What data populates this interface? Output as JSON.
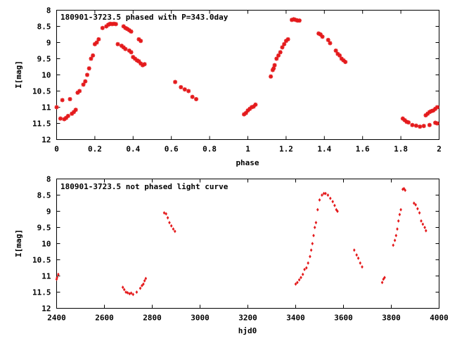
{
  "colors": {
    "point": "#e41a1c",
    "axis": "#000000",
    "background": "#ffffff"
  },
  "chart_data": [
    {
      "type": "scatter",
      "title": "180901-3723.5 phased with P=343.0day",
      "xlabel": "phase",
      "ylabel": "I[mag]",
      "xlim": [
        0,
        2
      ],
      "ylim": [
        8,
        12
      ],
      "y_inverted": true,
      "grid": false,
      "xticks": [
        0,
        0.2,
        0.4,
        0.6,
        0.8,
        1,
        1.2,
        1.4,
        1.6,
        1.8,
        2
      ],
      "xtick_labels": [
        "0",
        "0.2",
        "0.4",
        "0.6",
        "0.8",
        "1",
        "1.2",
        "1.4",
        "1.6",
        "1.8",
        "2"
      ],
      "yticks": [
        8,
        8.5,
        9,
        9.5,
        10,
        10.5,
        11,
        11.5,
        12
      ],
      "ytick_labels": [
        "8",
        "8.5",
        "9",
        "9.5",
        "10",
        "10.5",
        "11",
        "11.5",
        "12"
      ],
      "series": [
        {
          "marker": "star",
          "points": [
            [
              0.0,
              11.0
            ],
            [
              0.02,
              11.35
            ],
            [
              0.03,
              10.78
            ],
            [
              0.04,
              11.37
            ],
            [
              0.05,
              11.33
            ],
            [
              0.06,
              11.27
            ],
            [
              0.07,
              10.75
            ],
            [
              0.08,
              11.2
            ],
            [
              0.09,
              11.15
            ],
            [
              0.1,
              11.08
            ],
            [
              0.11,
              10.55
            ],
            [
              0.12,
              10.5
            ],
            [
              0.14,
              10.3
            ],
            [
              0.15,
              10.2
            ],
            [
              0.16,
              10.0
            ],
            [
              0.17,
              9.8
            ],
            [
              0.18,
              9.5
            ],
            [
              0.19,
              9.4
            ],
            [
              0.2,
              9.05
            ],
            [
              0.21,
              9.0
            ],
            [
              0.22,
              8.9
            ],
            [
              0.24,
              8.55
            ],
            [
              0.26,
              8.5
            ],
            [
              0.27,
              8.45
            ],
            [
              0.28,
              8.42
            ],
            [
              0.29,
              8.43
            ],
            [
              0.3,
              8.42
            ],
            [
              0.31,
              8.43
            ],
            [
              0.32,
              9.05
            ],
            [
              0.34,
              9.1
            ],
            [
              0.35,
              9.15
            ],
            [
              0.35,
              8.5
            ],
            [
              0.36,
              8.55
            ],
            [
              0.36,
              9.2
            ],
            [
              0.37,
              8.58
            ],
            [
              0.38,
              9.25
            ],
            [
              0.38,
              8.62
            ],
            [
              0.39,
              9.3
            ],
            [
              0.39,
              8.66
            ],
            [
              0.4,
              9.45
            ],
            [
              0.41,
              9.5
            ],
            [
              0.42,
              9.55
            ],
            [
              0.43,
              9.58
            ],
            [
              0.43,
              8.9
            ],
            [
              0.44,
              8.95
            ],
            [
              0.44,
              9.65
            ],
            [
              0.45,
              9.7
            ],
            [
              0.46,
              9.67
            ],
            [
              0.62,
              10.22
            ],
            [
              0.65,
              10.38
            ],
            [
              0.67,
              10.45
            ],
            [
              0.69,
              10.5
            ],
            [
              0.71,
              10.68
            ],
            [
              0.73,
              10.75
            ],
            [
              0.98,
              11.22
            ],
            [
              0.99,
              11.18
            ],
            [
              1.0,
              11.1
            ],
            [
              1.01,
              11.05
            ],
            [
              1.02,
              11.0
            ],
            [
              1.03,
              10.98
            ],
            [
              1.04,
              10.92
            ],
            [
              1.12,
              10.05
            ],
            [
              1.13,
              9.85
            ],
            [
              1.135,
              9.8
            ],
            [
              1.14,
              9.7
            ],
            [
              1.15,
              9.5
            ],
            [
              1.16,
              9.4
            ],
            [
              1.17,
              9.3
            ],
            [
              1.18,
              9.15
            ],
            [
              1.19,
              9.05
            ],
            [
              1.2,
              8.95
            ],
            [
              1.21,
              8.9
            ],
            [
              1.23,
              8.3
            ],
            [
              1.24,
              8.28
            ],
            [
              1.25,
              8.3
            ],
            [
              1.26,
              8.32
            ],
            [
              1.27,
              8.32
            ],
            [
              1.37,
              8.72
            ],
            [
              1.38,
              8.75
            ],
            [
              1.39,
              8.82
            ],
            [
              1.42,
              8.92
            ],
            [
              1.43,
              9.02
            ],
            [
              1.46,
              9.25
            ],
            [
              1.47,
              9.35
            ],
            [
              1.48,
              9.4
            ],
            [
              1.49,
              9.5
            ],
            [
              1.5,
              9.55
            ],
            [
              1.51,
              9.6
            ],
            [
              1.81,
              11.35
            ],
            [
              1.82,
              11.4
            ],
            [
              1.83,
              11.45
            ],
            [
              1.84,
              11.47
            ],
            [
              1.86,
              11.55
            ],
            [
              1.88,
              11.57
            ],
            [
              1.9,
              11.6
            ],
            [
              1.92,
              11.58
            ],
            [
              1.93,
              11.25
            ],
            [
              1.94,
              11.2
            ],
            [
              1.95,
              11.15
            ],
            [
              1.95,
              11.55
            ],
            [
              1.96,
              11.12
            ],
            [
              1.97,
              11.1
            ],
            [
              1.98,
              11.05
            ],
            [
              1.98,
              11.48
            ],
            [
              1.99,
              11.0
            ],
            [
              1.99,
              11.5
            ]
          ]
        }
      ]
    },
    {
      "type": "scatter",
      "title": "180901-3723.5 not phased light curve",
      "xlabel": "hjd0",
      "ylabel": "I[mag]",
      "xlim": [
        2400,
        4000
      ],
      "ylim": [
        8,
        12
      ],
      "y_inverted": true,
      "grid": false,
      "xticks": [
        2400,
        2600,
        2800,
        3000,
        3200,
        3400,
        3600,
        3800,
        4000
      ],
      "xtick_labels": [
        "2400",
        "2600",
        "2800",
        "3000",
        "3200",
        "3400",
        "3600",
        "3800",
        "4000"
      ],
      "yticks": [
        8,
        8.5,
        9,
        9.5,
        10,
        10.5,
        11,
        11.5,
        12
      ],
      "ytick_labels": [
        "8",
        "8.5",
        "9",
        "9.5",
        "10",
        "10.5",
        "11",
        "11.5",
        "12"
      ],
      "series": [
        {
          "marker": "diamond",
          "points": [
            [
              2400,
              11.1
            ],
            [
              2402,
              11.05
            ],
            [
              2407,
              10.95
            ],
            [
              2677,
              11.35
            ],
            [
              2683,
              11.42
            ],
            [
              2690,
              11.5
            ],
            [
              2697,
              11.52
            ],
            [
              2705,
              11.55
            ],
            [
              2712,
              11.53
            ],
            [
              2720,
              11.57
            ],
            [
              2735,
              11.5
            ],
            [
              2750,
              11.38
            ],
            [
              2757,
              11.3
            ],
            [
              2763,
              11.25
            ],
            [
              2768,
              11.15
            ],
            [
              2773,
              11.08
            ],
            [
              2850,
              9.05
            ],
            [
              2858,
              9.08
            ],
            [
              2865,
              9.2
            ],
            [
              2872,
              9.35
            ],
            [
              2880,
              9.45
            ],
            [
              2888,
              9.55
            ],
            [
              2895,
              9.62
            ],
            [
              3400,
              11.25
            ],
            [
              3407,
              11.2
            ],
            [
              3415,
              11.12
            ],
            [
              3422,
              11.05
            ],
            [
              3430,
              10.95
            ],
            [
              3437,
              10.8
            ],
            [
              3445,
              10.75
            ],
            [
              3452,
              10.6
            ],
            [
              3460,
              10.4
            ],
            [
              3465,
              10.2
            ],
            [
              3470,
              10.0
            ],
            [
              3475,
              9.75
            ],
            [
              3480,
              9.5
            ],
            [
              3485,
              9.35
            ],
            [
              3492,
              8.95
            ],
            [
              3500,
              8.65
            ],
            [
              3510,
              8.5
            ],
            [
              3518,
              8.45
            ],
            [
              3525,
              8.45
            ],
            [
              3535,
              8.5
            ],
            [
              3545,
              8.6
            ],
            [
              3555,
              8.7
            ],
            [
              3563,
              8.82
            ],
            [
              3570,
              8.95
            ],
            [
              3575,
              9.0
            ],
            [
              3645,
              10.2
            ],
            [
              3655,
              10.35
            ],
            [
              3662,
              10.45
            ],
            [
              3670,
              10.6
            ],
            [
              3678,
              10.72
            ],
            [
              3762,
              11.2
            ],
            [
              3767,
              11.1
            ],
            [
              3772,
              11.05
            ],
            [
              3808,
              10.05
            ],
            [
              3815,
              9.9
            ],
            [
              3820,
              9.75
            ],
            [
              3825,
              9.55
            ],
            [
              3830,
              9.3
            ],
            [
              3835,
              9.1
            ],
            [
              3840,
              8.95
            ],
            [
              3848,
              8.32
            ],
            [
              3853,
              8.3
            ],
            [
              3858,
              8.35
            ],
            [
              3895,
              8.75
            ],
            [
              3902,
              8.8
            ],
            [
              3910,
              8.92
            ],
            [
              3918,
              9.05
            ],
            [
              3925,
              9.3
            ],
            [
              3932,
              9.4
            ],
            [
              3940,
              9.5
            ],
            [
              3945,
              9.6
            ]
          ]
        }
      ]
    }
  ]
}
